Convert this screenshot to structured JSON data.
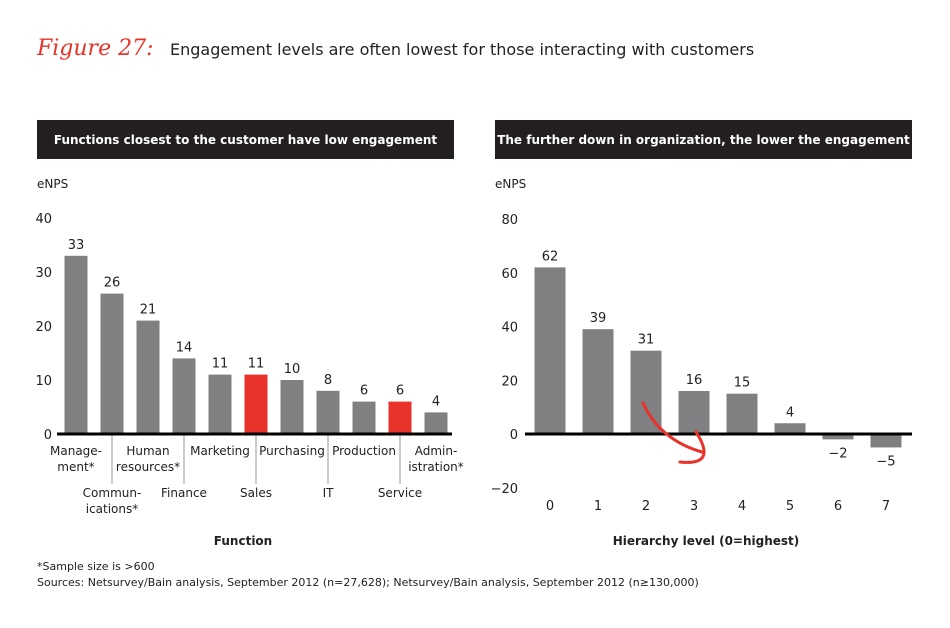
{
  "figure_label": "Figure 27:",
  "title": "Engagement levels are often lowest for those interacting with customers",
  "footnote": "*Sample size is >600",
  "sources": "Sources: Netsurvey/Bain analysis, September 2012 (n=27,628); Netsurvey/Bain analysis, September 2012 (n≥130,000)",
  "colors": {
    "bar": "#808083",
    "highlight": "#e8322a",
    "band": "#231f20"
  },
  "chart_data": [
    {
      "type": "bar",
      "title": "Functions closest to the customer have low engagement",
      "ylabel": "eNPS",
      "xlabel": "Function",
      "ylim": [
        0,
        40
      ],
      "yticks": [
        0,
        10,
        20,
        30,
        40
      ],
      "categories": [
        "Management*",
        "Communications*",
        "Human resources*",
        "Finance",
        "Marketing",
        "Sales",
        "Purchasing",
        "IT",
        "Production",
        "Service",
        "Administration*"
      ],
      "category_labels": [
        [
          "Manage-",
          "ment*"
        ],
        [
          "Commun-",
          "ications*"
        ],
        [
          "Human",
          "resources*"
        ],
        [
          "Finance"
        ],
        [
          "Marketing"
        ],
        [
          "Sales"
        ],
        [
          "Purchasing"
        ],
        [
          "IT"
        ],
        [
          "Production"
        ],
        [
          "Service"
        ],
        [
          "Admin-",
          "istration*"
        ]
      ],
      "values": [
        33,
        26,
        21,
        14,
        11,
        11,
        10,
        8,
        6,
        6,
        4
      ],
      "highlighted": [
        "Sales",
        "Service"
      ]
    },
    {
      "type": "bar",
      "title": "The further down in organization, the lower the engagement",
      "ylabel": "eNPS",
      "xlabel": "Hierarchy level (0=highest)",
      "ylim": [
        -20,
        80
      ],
      "yticks": [
        -20,
        0,
        20,
        40,
        60,
        80
      ],
      "categories": [
        "0",
        "1",
        "2",
        "3",
        "4",
        "5",
        "6",
        "7"
      ],
      "values": [
        62,
        39,
        31,
        16,
        15,
        4,
        -2,
        -5
      ],
      "value_labels": [
        "62",
        "39",
        "31",
        "16",
        "15",
        "4",
        "−2",
        "−5"
      ],
      "tick_labels": [
        "−20",
        "0",
        "20",
        "40",
        "60",
        "80"
      ],
      "annotation": "red downward arrow"
    }
  ]
}
